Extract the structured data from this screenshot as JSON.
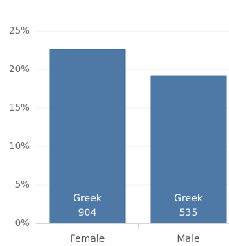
{
  "chart_data": {
    "type": "bar",
    "categories": [
      "Female",
      "Male"
    ],
    "values": [
      22.6,
      19.2
    ],
    "bar_labels": [
      {
        "line1": "Greek",
        "line2": "904"
      },
      {
        "line1": "Greek",
        "line2": "535"
      }
    ],
    "y_ticks": [
      {
        "value": 0,
        "label": "0%"
      },
      {
        "value": 5,
        "label": "5%"
      },
      {
        "value": 10,
        "label": "10%"
      },
      {
        "value": 15,
        "label": "15%"
      },
      {
        "value": 20,
        "label": "20%"
      },
      {
        "value": 25,
        "label": "25%"
      }
    ],
    "ylim": [
      0,
      28.5
    ],
    "grid": true,
    "xlabel": "",
    "ylabel": "",
    "colors": {
      "bar": "#4e79a7",
      "bar_edge": "#3d6591",
      "grid": "#efefef",
      "axis": "#d4d4d4",
      "tick_text": "#666666",
      "category_text": "#555555",
      "bar_label_text": "#ffffff"
    }
  }
}
